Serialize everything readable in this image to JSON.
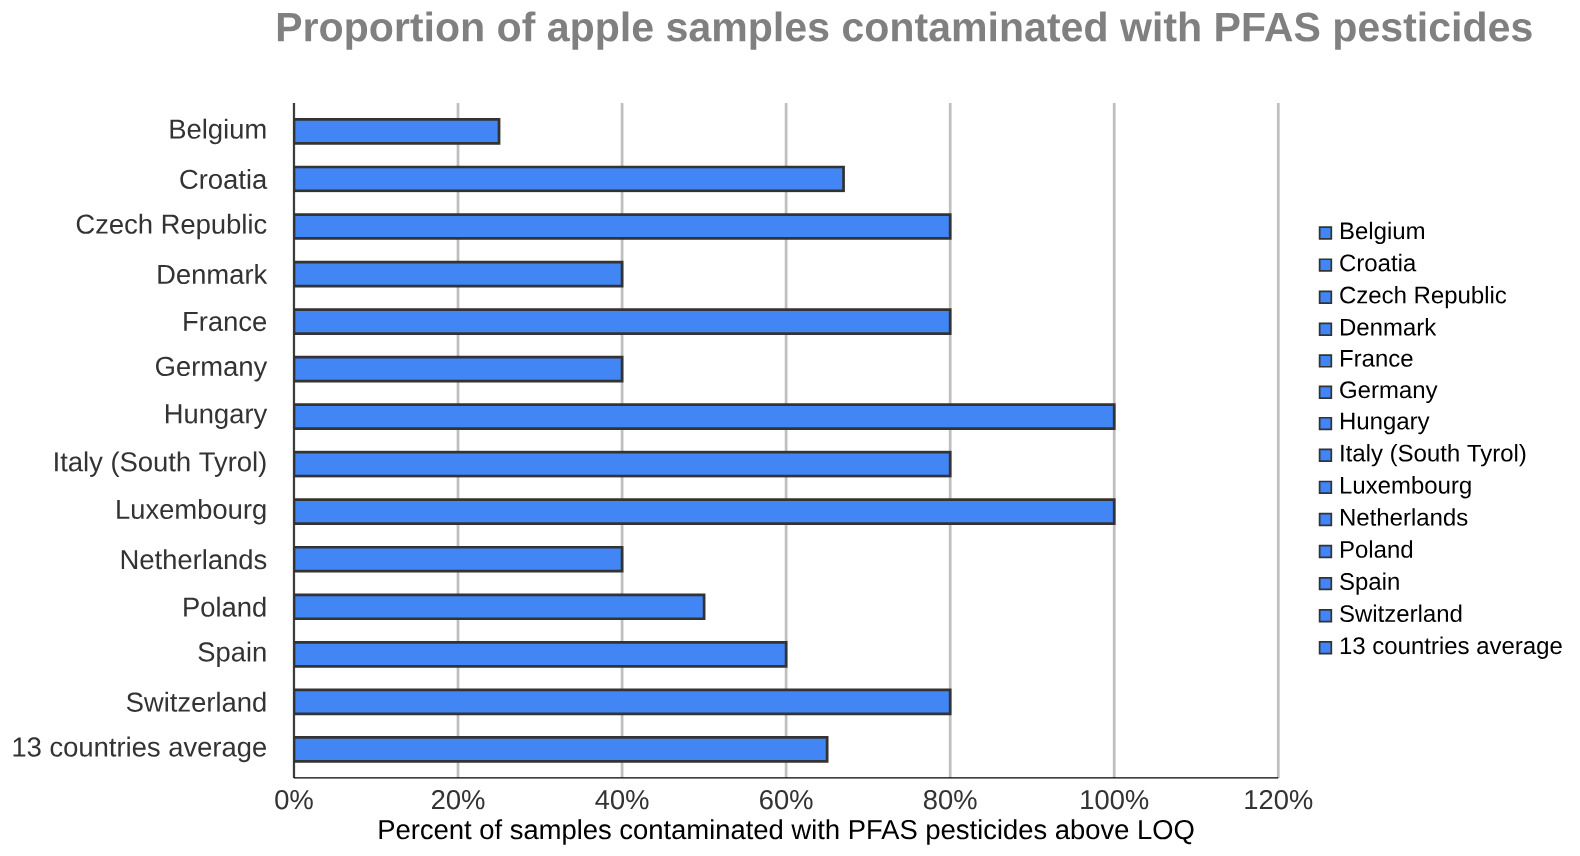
{
  "chart_data": {
    "type": "bar",
    "orientation": "horizontal",
    "title": "Proportion of apple samples contaminated with PFAS pesticides",
    "xlabel": "Percent of samples contaminated with PFAS pesticides above LOQ",
    "categories": [
      "Belgium",
      "Croatia",
      "Czech Republic",
      "Denmark",
      "France",
      "Germany",
      "Hungary",
      "Italy (South Tyrol)",
      "Luxembourg",
      "Netherlands",
      "Poland",
      "Spain",
      "Switzerland",
      "13 countries average"
    ],
    "series": [
      {
        "name": "Belgium",
        "color": "#4285f4",
        "values": [
          25,
          null,
          null,
          null,
          null,
          null,
          null,
          null,
          null,
          null,
          null,
          null,
          null,
          null
        ]
      },
      {
        "name": "Croatia",
        "color": "#4285f4",
        "values": [
          null,
          67,
          null,
          null,
          null,
          null,
          null,
          null,
          null,
          null,
          null,
          null,
          null,
          null
        ]
      },
      {
        "name": "Czech Republic",
        "color": "#4285f4",
        "values": [
          null,
          null,
          80,
          null,
          null,
          null,
          null,
          null,
          null,
          null,
          null,
          null,
          null,
          null
        ]
      },
      {
        "name": "Denmark",
        "color": "#4285f4",
        "values": [
          null,
          null,
          null,
          40,
          null,
          null,
          null,
          null,
          null,
          null,
          null,
          null,
          null,
          null
        ]
      },
      {
        "name": "France",
        "color": "#4285f4",
        "values": [
          null,
          null,
          null,
          null,
          80,
          null,
          null,
          null,
          null,
          null,
          null,
          null,
          null,
          null
        ]
      },
      {
        "name": "Germany",
        "color": "#4285f4",
        "values": [
          null,
          null,
          null,
          null,
          null,
          40,
          null,
          null,
          null,
          null,
          null,
          null,
          null,
          null
        ]
      },
      {
        "name": "Hungary",
        "color": "#4285f4",
        "values": [
          null,
          null,
          null,
          null,
          null,
          null,
          100,
          null,
          null,
          null,
          null,
          null,
          null,
          null
        ]
      },
      {
        "name": "Italy (South Tyrol)",
        "color": "#4285f4",
        "values": [
          null,
          null,
          null,
          null,
          null,
          null,
          null,
          80,
          null,
          null,
          null,
          null,
          null,
          null
        ]
      },
      {
        "name": "Luxembourg",
        "color": "#4285f4",
        "values": [
          null,
          null,
          null,
          null,
          null,
          null,
          null,
          null,
          100,
          null,
          null,
          null,
          null,
          null
        ]
      },
      {
        "name": "Netherlands",
        "color": "#4285f4",
        "values": [
          null,
          null,
          null,
          null,
          null,
          null,
          null,
          null,
          null,
          40,
          null,
          null,
          null,
          null
        ]
      },
      {
        "name": "Poland",
        "color": "#4285f4",
        "values": [
          null,
          null,
          null,
          null,
          null,
          null,
          null,
          null,
          null,
          null,
          50,
          null,
          null,
          null
        ]
      },
      {
        "name": "Spain",
        "color": "#4285f4",
        "values": [
          null,
          null,
          null,
          null,
          null,
          null,
          null,
          null,
          null,
          null,
          null,
          60,
          null,
          null
        ]
      },
      {
        "name": "Switzerland",
        "color": "#4285f4",
        "values": [
          null,
          null,
          null,
          null,
          null,
          null,
          null,
          null,
          null,
          null,
          null,
          null,
          80,
          null
        ]
      },
      {
        "name": "13 countries average",
        "color": "#4285f4",
        "values": [
          null,
          null,
          null,
          null,
          null,
          null,
          null,
          null,
          null,
          null,
          null,
          null,
          null,
          65
        ]
      }
    ],
    "xlim": [
      0,
      120
    ],
    "xticks": [
      {
        "value": 0,
        "label": "0%"
      },
      {
        "value": 20,
        "label": "20%"
      },
      {
        "value": 40,
        "label": "40%"
      },
      {
        "value": 60,
        "label": "60%"
      },
      {
        "value": 80,
        "label": "80%"
      },
      {
        "value": 100,
        "label": "100%"
      },
      {
        "value": 120,
        "label": "120%"
      }
    ],
    "grid": "x",
    "legend": "right"
  }
}
